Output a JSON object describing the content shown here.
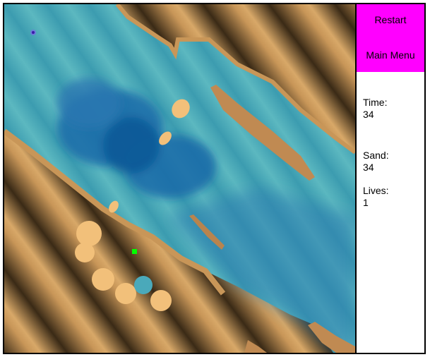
{
  "menu": {
    "restart_label": "Restart",
    "main_menu_label": "Main Menu"
  },
  "stats": {
    "time_label": "Time:",
    "time_value": "34",
    "sand_label": "Sand:",
    "sand_value": "34",
    "lives_label": "Lives:",
    "lives_value": "1"
  },
  "colors": {
    "menu_bg": "#ff00ff",
    "sand": "#c89658",
    "shadow": "#2a1e10",
    "water": "#4fb0bc",
    "deep_water": "#1e6aa4",
    "player": "#00ff00",
    "target": "#5a3cd8",
    "sand_ball": "#f2c07a"
  },
  "icons": {
    "player": "green-square-player-icon",
    "target": "purple-dot-target-icon"
  }
}
